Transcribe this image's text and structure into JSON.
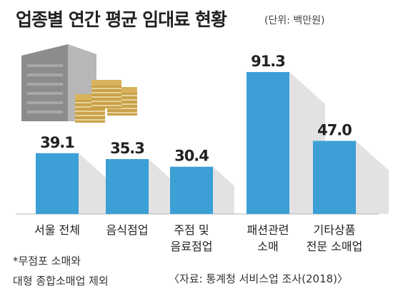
{
  "title": "업종별 연간 평균 임대료 현황",
  "unit": "(단위: 백만원)",
  "footnote": [
    "*무점포 소매와",
    "대형 종합소매업 제외"
  ],
  "source": "〈자료: 통계청 서비스업 조사(2018)〉",
  "colors": {
    "bar": "#3c9fd6",
    "shadow": "#e2e2e2",
    "baseline": "#b5b5b5",
    "building": "#8c8c8c",
    "money": "#d8b35c"
  },
  "illustration": [
    "building-icon",
    "money-stack-icon"
  ],
  "chart_data": {
    "type": "bar",
    "title": "업종별 연간 평균 임대료 현황",
    "xlabel": "",
    "ylabel": "",
    "ylim": [
      0,
      100
    ],
    "categories": [
      [
        "서울 전체"
      ],
      [
        "음식점업"
      ],
      [
        "주점 및",
        "음료점업"
      ],
      [
        "패션관련",
        "소매"
      ],
      [
        "기타상품",
        "전문 소매업"
      ]
    ],
    "values": [
      39.1,
      35.3,
      30.4,
      91.3,
      47.0
    ],
    "value_labels": [
      "39.1",
      "35.3",
      "30.4",
      "91.3",
      "47.0"
    ]
  }
}
